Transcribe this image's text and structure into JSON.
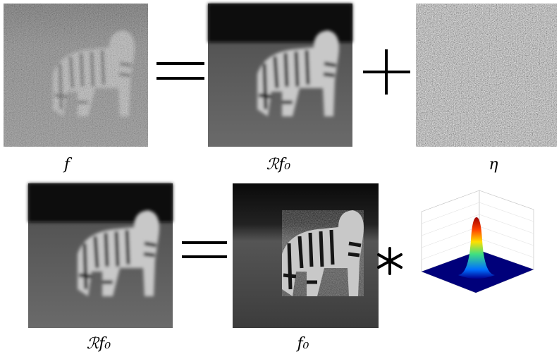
{
  "labels": {
    "top_left": "f",
    "top_middle": "ℛf₀",
    "top_right": "η",
    "bottom_left": "ℛf₀",
    "bottom_middle": "f₀"
  }
}
